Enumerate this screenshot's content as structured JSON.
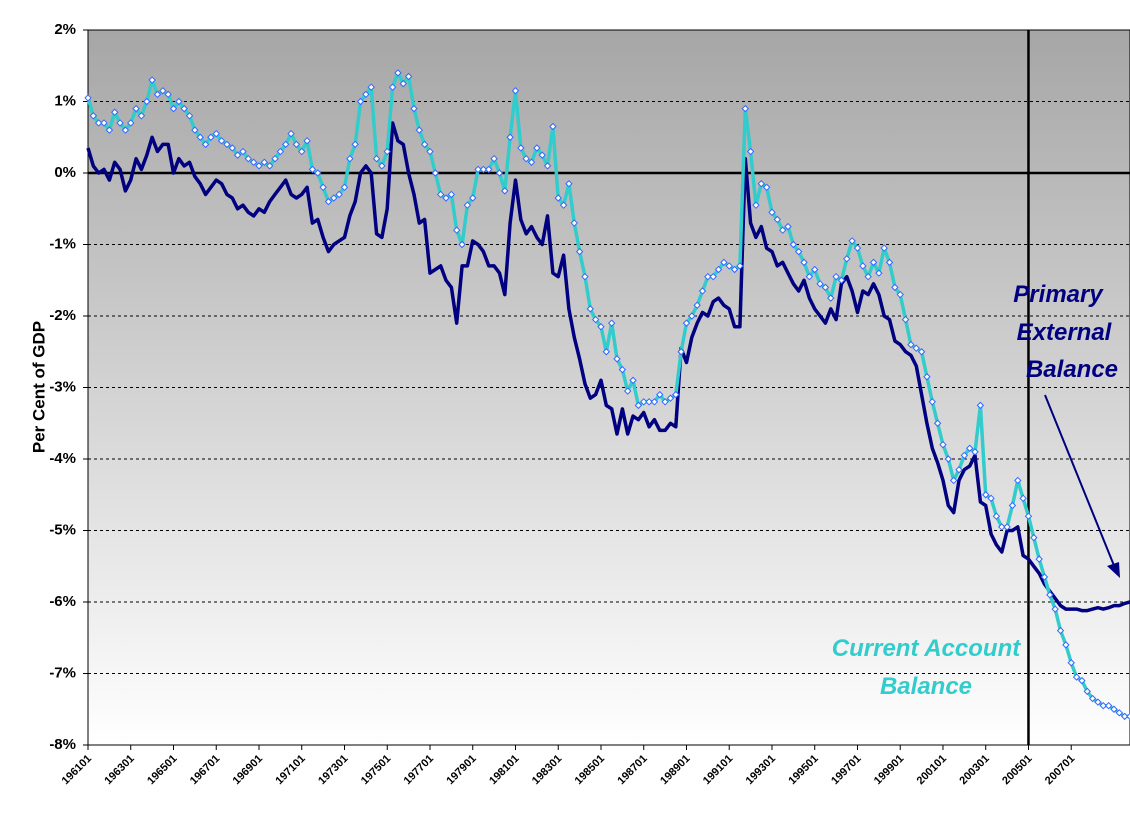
{
  "chart_data": {
    "type": "line",
    "y_label": "Per Cent of GDP",
    "ylim": [
      -8,
      2
    ],
    "yticks": [
      {
        "value": -8,
        "label": "-8%"
      },
      {
        "value": -7,
        "label": "-7%"
      },
      {
        "value": -6,
        "label": "-6%"
      },
      {
        "value": -5,
        "label": "-5%"
      },
      {
        "value": -4,
        "label": "-4%"
      },
      {
        "value": -3,
        "label": "-3%"
      },
      {
        "value": -2,
        "label": "-2%"
      },
      {
        "value": -1,
        "label": "-1%"
      },
      {
        "value": 0,
        "label": "0%"
      },
      {
        "value": 1,
        "label": "1%"
      },
      {
        "value": 2,
        "label": "2%"
      }
    ],
    "grid": true,
    "vline_at": "200501",
    "categories": [
      "196101",
      null,
      null,
      null,
      null,
      null,
      null,
      null,
      "196301",
      null,
      null,
      null,
      null,
      null,
      null,
      null,
      "196501",
      null,
      null,
      null,
      null,
      null,
      null,
      null,
      "196701",
      null,
      null,
      null,
      null,
      null,
      null,
      null,
      "196901",
      null,
      null,
      null,
      null,
      null,
      null,
      null,
      "197101",
      null,
      null,
      null,
      null,
      null,
      null,
      null,
      "197301",
      null,
      null,
      null,
      null,
      null,
      null,
      null,
      "197501",
      null,
      null,
      null,
      null,
      null,
      null,
      null,
      "197701",
      null,
      null,
      null,
      null,
      null,
      null,
      null,
      "197901",
      null,
      null,
      null,
      null,
      null,
      null,
      null,
      "198101",
      null,
      null,
      null,
      null,
      null,
      null,
      null,
      "198301",
      null,
      null,
      null,
      null,
      null,
      null,
      null,
      "198501",
      null,
      null,
      null,
      null,
      null,
      null,
      null,
      "198701",
      null,
      null,
      null,
      null,
      null,
      null,
      null,
      "198901",
      null,
      null,
      null,
      null,
      null,
      null,
      null,
      "199101",
      null,
      null,
      null,
      null,
      null,
      null,
      null,
      "199301",
      null,
      null,
      null,
      null,
      null,
      null,
      null,
      "199501",
      null,
      null,
      null,
      null,
      null,
      null,
      null,
      "199701",
      null,
      null,
      null,
      null,
      null,
      null,
      null,
      "199901",
      null,
      null,
      null,
      null,
      null,
      null,
      null,
      "200101",
      null,
      null,
      null,
      null,
      null,
      null,
      null,
      "200301",
      null,
      null,
      null,
      null,
      null,
      null,
      null,
      "200501",
      null,
      null,
      null,
      null,
      null,
      null,
      null,
      "200701",
      null,
      null,
      null,
      null,
      null,
      null,
      null,
      null,
      null,
      null,
      null
    ],
    "series": [
      {
        "name": "Current Account Balance",
        "color": "#33cccc",
        "marker_color": "#3366ff",
        "annotation": [
          "Current Account",
          "Balance"
        ],
        "values": [
          1.05,
          0.8,
          0.7,
          0.7,
          0.6,
          0.85,
          0.7,
          0.6,
          0.7,
          0.9,
          0.8,
          1.0,
          1.3,
          1.1,
          1.15,
          1.1,
          0.9,
          1.0,
          0.9,
          0.8,
          0.6,
          0.5,
          0.4,
          0.5,
          0.55,
          0.45,
          0.4,
          0.35,
          0.25,
          0.3,
          0.2,
          0.15,
          0.1,
          0.15,
          0.1,
          0.2,
          0.3,
          0.4,
          0.55,
          0.4,
          0.3,
          0.45,
          0.05,
          0.0,
          -0.2,
          -0.4,
          -0.35,
          -0.3,
          -0.2,
          0.2,
          0.4,
          1.0,
          1.1,
          1.2,
          0.2,
          0.1,
          0.3,
          1.2,
          1.4,
          1.25,
          1.35,
          0.9,
          0.6,
          0.4,
          0.3,
          0.0,
          -0.3,
          -0.35,
          -0.3,
          -0.8,
          -1.0,
          -0.45,
          -0.35,
          0.05,
          0.05,
          0.05,
          0.2,
          0.0,
          -0.25,
          0.5,
          1.15,
          0.35,
          0.2,
          0.15,
          0.35,
          0.25,
          0.1,
          0.65,
          -0.35,
          -0.45,
          -0.15,
          -0.7,
          -1.1,
          -1.45,
          -1.9,
          -2.05,
          -2.15,
          -2.5,
          -2.1,
          -2.6,
          -2.75,
          -3.05,
          -2.9,
          -3.25,
          -3.2,
          -3.2,
          -3.2,
          -3.1,
          -3.2,
          -3.15,
          -3.1,
          -2.5,
          -2.1,
          -2.0,
          -1.85,
          -1.65,
          -1.45,
          -1.45,
          -1.35,
          -1.25,
          -1.3,
          -1.35,
          -1.3,
          0.9,
          0.3,
          -0.45,
          -0.15,
          -0.2,
          -0.55,
          -0.65,
          -0.8,
          -0.75,
          -1.0,
          -1.1,
          -1.25,
          -1.45,
          -1.35,
          -1.55,
          -1.6,
          -1.75,
          -1.45,
          -1.5,
          -1.2,
          -0.95,
          -1.05,
          -1.3,
          -1.45,
          -1.25,
          -1.4,
          -1.05,
          -1.25,
          -1.6,
          -1.7,
          -2.05,
          -2.4,
          -2.45,
          -2.5,
          -2.85,
          -3.2,
          -3.5,
          -3.8,
          -4.0,
          -4.3,
          -4.15,
          -3.95,
          -3.85,
          -3.9,
          -3.25,
          -4.5,
          -4.55,
          -4.8,
          -4.95,
          -4.95,
          -4.65,
          -4.3,
          -4.55,
          -4.8,
          -5.1,
          -5.4,
          -5.65,
          -5.9,
          -6.1,
          -6.4,
          -6.6,
          -6.85,
          -7.05,
          -7.1,
          -7.25,
          -7.35,
          -7.4,
          -7.45,
          -7.45,
          -7.5,
          -7.55,
          -7.6,
          -7.6
        ]
      },
      {
        "name": "Primary External Balance",
        "color": "#000080",
        "annotation": [
          "Primary",
          "External",
          "Balance"
        ],
        "values": [
          0.35,
          0.1,
          0.0,
          0.05,
          -0.1,
          0.15,
          0.05,
          -0.25,
          -0.1,
          0.2,
          0.05,
          0.25,
          0.5,
          0.3,
          0.4,
          0.4,
          0.0,
          0.2,
          0.1,
          0.15,
          -0.05,
          -0.15,
          -0.3,
          -0.2,
          -0.1,
          -0.15,
          -0.3,
          -0.35,
          -0.5,
          -0.45,
          -0.55,
          -0.6,
          -0.5,
          -0.55,
          -0.4,
          -0.3,
          -0.2,
          -0.1,
          -0.3,
          -0.35,
          -0.3,
          -0.2,
          -0.7,
          -0.65,
          -0.9,
          -1.1,
          -1.0,
          -0.95,
          -0.9,
          -0.6,
          -0.4,
          0.0,
          0.1,
          0.0,
          -0.85,
          -0.9,
          -0.5,
          0.7,
          0.45,
          0.4,
          0.0,
          -0.3,
          -0.7,
          -0.65,
          -1.4,
          -1.35,
          -1.3,
          -1.5,
          -1.6,
          -2.1,
          -1.3,
          -1.3,
          -0.95,
          -1.0,
          -1.1,
          -1.3,
          -1.3,
          -1.4,
          -1.7,
          -0.7,
          -0.1,
          -0.65,
          -0.85,
          -0.75,
          -0.9,
          -1.0,
          -0.6,
          -1.4,
          -1.45,
          -1.15,
          -1.9,
          -2.3,
          -2.6,
          -2.95,
          -3.15,
          -3.1,
          -2.9,
          -3.25,
          -3.3,
          -3.65,
          -3.3,
          -3.65,
          -3.4,
          -3.45,
          -3.35,
          -3.55,
          -3.45,
          -3.6,
          -3.6,
          -3.5,
          -3.55,
          -2.45,
          -2.65,
          -2.3,
          -2.1,
          -1.95,
          -2.0,
          -1.8,
          -1.75,
          -1.85,
          -1.9,
          -2.15,
          -2.15,
          0.2,
          -0.7,
          -0.9,
          -0.75,
          -1.05,
          -1.1,
          -1.3,
          -1.25,
          -1.4,
          -1.55,
          -1.65,
          -1.5,
          -1.75,
          -1.9,
          -2.0,
          -2.1,
          -1.9,
          -2.05,
          -1.55,
          -1.45,
          -1.65,
          -1.95,
          -1.65,
          -1.7,
          -1.55,
          -1.7,
          -2.0,
          -2.05,
          -2.35,
          -2.4,
          -2.5,
          -2.55,
          -2.7,
          -3.1,
          -3.5,
          -3.85,
          -4.05,
          -4.3,
          -4.65,
          -4.75,
          -4.3,
          -4.15,
          -4.1,
          -3.95,
          -4.6,
          -4.65,
          -5.05,
          -5.2,
          -5.3,
          -5.0,
          -5.0,
          -4.95,
          -5.35,
          -5.4,
          -5.5,
          -5.6,
          -5.75,
          -5.85,
          -5.95,
          -6.05,
          -6.1,
          -6.1,
          -6.1,
          -6.12,
          -6.12,
          -6.1,
          -6.08,
          -6.1,
          -6.08,
          -6.05,
          -6.05,
          -6.02,
          -6.0
        ]
      }
    ]
  }
}
